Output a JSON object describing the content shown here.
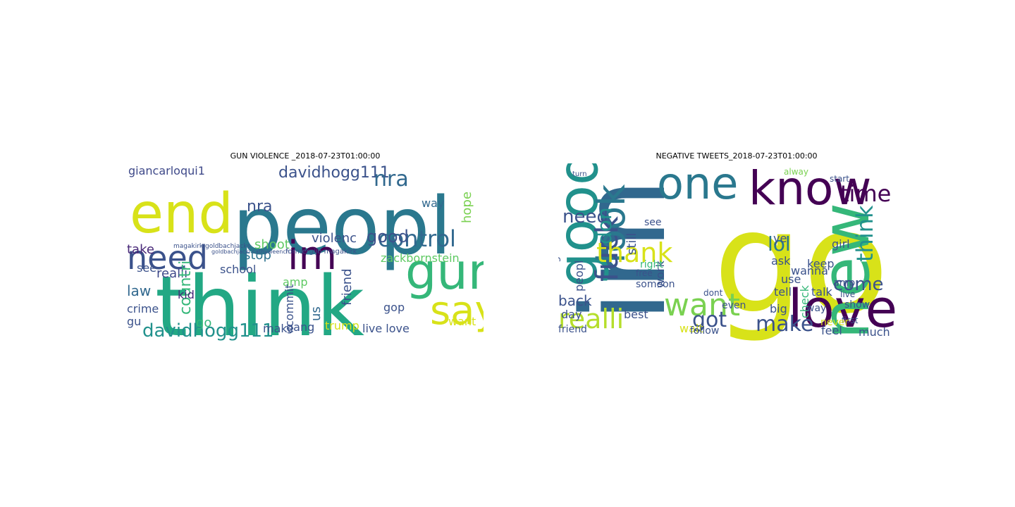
{
  "figure": {
    "panels": [
      {
        "title": "GUN VIOLENCE _2018-07-23T01:00:00",
        "words": [
          {
            "text": "peopl",
            "color": "#2a788e"
          },
          {
            "text": "think",
            "color": "#22a884"
          },
          {
            "text": "end",
            "color": "#d8e219"
          },
          {
            "text": "need",
            "color": "#3b528b"
          },
          {
            "text": "im",
            "color": "#440154"
          },
          {
            "text": "gun",
            "color": "#35b779"
          },
          {
            "text": "say",
            "color": "#d8e219"
          },
          {
            "text": "control",
            "color": "#31688e"
          },
          {
            "text": "davidhogg111",
            "color": "#3b528b"
          },
          {
            "text": "davidhogg111",
            "color": "#21918c"
          },
          {
            "text": "nra",
            "color": "#3b528b"
          },
          {
            "text": "nra",
            "color": "#31688e"
          },
          {
            "text": "giancarloqui1",
            "color": "#3e4989"
          },
          {
            "text": "zackbornstein",
            "color": "#5ec962"
          },
          {
            "text": "good",
            "color": "#3b528b"
          },
          {
            "text": "law",
            "color": "#31688e"
          },
          {
            "text": "crime",
            "color": "#3b528b"
          },
          {
            "text": "stop",
            "color": "#2c728e"
          },
          {
            "text": "school",
            "color": "#3b528b"
          },
          {
            "text": "shoot",
            "color": "#5ec962"
          },
          {
            "text": "realli",
            "color": "#3e4989"
          },
          {
            "text": "take",
            "color": "#482878"
          },
          {
            "text": "see",
            "color": "#3b528b"
          },
          {
            "text": "violenc",
            "color": "#3b528b"
          },
          {
            "text": "way",
            "color": "#31688e"
          },
          {
            "text": "hope",
            "color": "#7ad151"
          },
          {
            "text": "countri",
            "color": "#35b779"
          },
          {
            "text": "kid",
            "color": "#482878"
          },
          {
            "text": "go",
            "color": "#35b779"
          },
          {
            "text": "gu",
            "color": "#3b528b"
          },
          {
            "text": "amp",
            "color": "#5ec962"
          },
          {
            "text": "commit",
            "color": "#3b528b"
          },
          {
            "text": "friend",
            "color": "#3b528b"
          },
          {
            "text": "us",
            "color": "#31688e"
          },
          {
            "text": "trump",
            "color": "#d8e219"
          },
          {
            "text": "gang",
            "color": "#3b528b"
          },
          {
            "text": "make",
            "color": "#3b528b"
          },
          {
            "text": "live love",
            "color": "#3b528b"
          },
          {
            "text": "want",
            "color": "#d8e219"
          },
          {
            "text": "gop",
            "color": "#3b528b"
          },
          {
            "text": "formergijo magakirk",
            "color": "#3b528b"
          },
          {
            "text": "magakirk goldbachjacks",
            "color": "#3b528b"
          },
          {
            "text": "goldbachjacki cathyweench",
            "color": "#3b528b"
          }
        ]
      },
      {
        "title": "NEGATIVE TWEETS_2018-07-23T01:00:00",
        "words": [
          {
            "text": "go",
            "color": "#d8e219"
          },
          {
            "text": "im",
            "color": "#31688e"
          },
          {
            "text": "love",
            "color": "#440154"
          },
          {
            "text": "new",
            "color": "#35b779"
          },
          {
            "text": "know",
            "color": "#440154"
          },
          {
            "text": "one",
            "color": "#2a788e"
          },
          {
            "text": "good",
            "color": "#21918c"
          },
          {
            "text": "look",
            "color": "#2a788e"
          },
          {
            "text": "fuck",
            "color": "#3b528b"
          },
          {
            "text": "realli",
            "color": "#b5de2b"
          },
          {
            "text": "want",
            "color": "#7ad151"
          },
          {
            "text": "thank",
            "color": "#d8e219"
          },
          {
            "text": "time",
            "color": "#440154"
          },
          {
            "text": "think",
            "color": "#21918c"
          },
          {
            "text": "lol",
            "color": "#2a788e"
          },
          {
            "text": "make",
            "color": "#3b528b"
          },
          {
            "text": "got",
            "color": "#3b528b"
          },
          {
            "text": "need",
            "color": "#3b528b"
          },
          {
            "text": "don",
            "color": "#21918c"
          },
          {
            "text": "come",
            "color": "#3b528b"
          },
          {
            "text": "back",
            "color": "#3b528b"
          },
          {
            "text": "peopl",
            "color": "#3b528b"
          },
          {
            "text": "still",
            "color": "#3b528b"
          },
          {
            "text": "check",
            "color": "#35b779"
          },
          {
            "text": "wanna",
            "color": "#3b528b"
          },
          {
            "text": "tell",
            "color": "#3b528b"
          },
          {
            "text": "talk",
            "color": "#3b528b"
          },
          {
            "text": "keep",
            "color": "#3b528b"
          },
          {
            "text": "girl",
            "color": "#3b528b"
          },
          {
            "text": "use",
            "color": "#3b528b"
          },
          {
            "text": "ask",
            "color": "#3b528b"
          },
          {
            "text": "big",
            "color": "#3b528b"
          },
          {
            "text": "best",
            "color": "#3b528b"
          },
          {
            "text": "work",
            "color": "#3b528b"
          },
          {
            "text": "feel",
            "color": "#3b528b"
          },
          {
            "text": "much",
            "color": "#3b528b"
          },
          {
            "text": "wait",
            "color": "#d8e219"
          },
          {
            "text": "day",
            "color": "#3b528b"
          },
          {
            "text": "friend",
            "color": "#3b528b"
          },
          {
            "text": "follow",
            "color": "#3b528b"
          },
          {
            "text": "someon",
            "color": "#3b528b"
          },
          {
            "text": "right",
            "color": "#35b779"
          },
          {
            "text": "show",
            "color": "#3b528b"
          },
          {
            "text": "first",
            "color": "#3b528b"
          },
          {
            "text": "never",
            "color": "#d8e219"
          },
          {
            "text": "thing",
            "color": "#3b528b"
          },
          {
            "text": "free",
            "color": "#3b528b"
          },
          {
            "text": "see",
            "color": "#3b528b"
          },
          {
            "text": "ye",
            "color": "#3b528b"
          },
          {
            "text": "way",
            "color": "#3b528b"
          },
          {
            "text": "live",
            "color": "#3b528b"
          },
          {
            "text": "amp",
            "color": "#3b528b"
          },
          {
            "text": "even",
            "color": "#3b528b"
          },
          {
            "text": "dont",
            "color": "#3b528b"
          },
          {
            "text": "start",
            "color": "#3b528b"
          },
          {
            "text": "alway",
            "color": "#7ad151"
          },
          {
            "text": "turn",
            "color": "#3b528b"
          }
        ]
      }
    ]
  }
}
